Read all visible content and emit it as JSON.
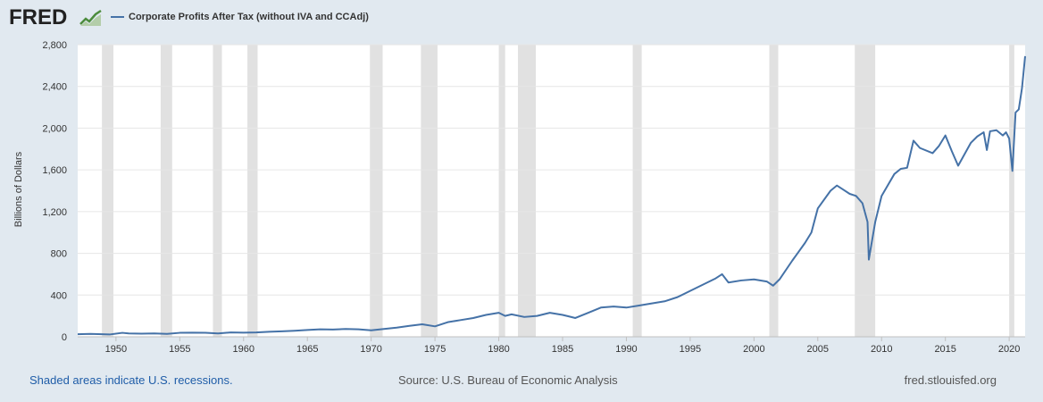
{
  "header": {
    "logo_text": "FRED",
    "logo_icon": "line-chart-icon"
  },
  "legend": {
    "series_name": "Corporate Profits After Tax (without IVA and CCAdj)",
    "color": "#4572a7"
  },
  "footer": {
    "recession_note": "Shaded areas indicate U.S. recessions.",
    "source": "Source: U.S. Bureau of Economic Analysis",
    "site": "fred.stlouisfed.org"
  },
  "chart_data": {
    "type": "line",
    "ylabel": "Billions of Dollars",
    "xlabel": "",
    "ylim": [
      0,
      2800
    ],
    "yticks": [
      0,
      400,
      800,
      1200,
      1600,
      2000,
      2400,
      2800
    ],
    "ytick_labels": [
      "0",
      "400",
      "800",
      "1,200",
      "1,600",
      "2,000",
      "2,400",
      "2,800"
    ],
    "xlim": [
      1947.0,
      2021.25
    ],
    "xticks": [
      1950,
      1955,
      1960,
      1965,
      1970,
      1975,
      1980,
      1985,
      1990,
      1995,
      2000,
      2005,
      2010,
      2015,
      2020
    ],
    "xtick_labels": [
      "1950",
      "1955",
      "1960",
      "1965",
      "1970",
      "1975",
      "1980",
      "1985",
      "1990",
      "1995",
      "2000",
      "2005",
      "2010",
      "2015",
      "2020"
    ],
    "grid": "horizontal",
    "recessions": [
      [
        1948.9,
        1949.8
      ],
      [
        1953.5,
        1954.4
      ],
      [
        1957.6,
        1958.3
      ],
      [
        1960.3,
        1961.1
      ],
      [
        1969.9,
        1970.9
      ],
      [
        1973.9,
        1975.2
      ],
      [
        1980.0,
        1980.5
      ],
      [
        1981.5,
        1982.9
      ],
      [
        1990.5,
        1991.2
      ],
      [
        2001.2,
        2001.9
      ],
      [
        2007.9,
        2009.5
      ],
      [
        2020.0,
        2020.4
      ]
    ],
    "recession_color": "#e1e1e1",
    "series": [
      {
        "color": "#4572a7",
        "x": [
          1947.0,
          1948.0,
          1949.5,
          1950.5,
          1951.0,
          1952.0,
          1953.0,
          1954.0,
          1955.0,
          1956.0,
          1957.0,
          1958.0,
          1959.0,
          1960.0,
          1961.0,
          1962.0,
          1963.0,
          1964.0,
          1965.0,
          1966.0,
          1967.0,
          1968.0,
          1969.0,
          1970.0,
          1971.0,
          1972.0,
          1973.0,
          1974.0,
          1975.0,
          1976.0,
          1977.0,
          1978.0,
          1979.0,
          1980.0,
          1980.5,
          1981.0,
          1982.0,
          1983.0,
          1984.0,
          1985.0,
          1986.0,
          1987.0,
          1988.0,
          1989.0,
          1990.0,
          1991.0,
          1992.0,
          1993.0,
          1994.0,
          1995.0,
          1996.0,
          1997.0,
          1997.5,
          1998.0,
          1999.0,
          2000.0,
          2001.0,
          2001.5,
          2002.0,
          2003.0,
          2004.0,
          2004.5,
          2005.0,
          2006.0,
          2006.5,
          2007.0,
          2007.5,
          2008.0,
          2008.5,
          2008.9,
          2009.0,
          2009.5,
          2010.0,
          2011.0,
          2011.5,
          2012.0,
          2012.5,
          2013.0,
          2014.0,
          2014.5,
          2015.0,
          2015.5,
          2016.0,
          2017.0,
          2017.5,
          2018.0,
          2018.25,
          2018.5,
          2019.0,
          2019.5,
          2019.75,
          2020.0,
          2020.25,
          2020.5,
          2020.75,
          2021.0,
          2021.25
        ],
        "values": [
          25,
          28,
          22,
          38,
          32,
          30,
          32,
          28,
          38,
          40,
          38,
          32,
          42,
          40,
          42,
          48,
          52,
          58,
          65,
          72,
          70,
          75,
          72,
          62,
          75,
          88,
          105,
          120,
          100,
          140,
          160,
          180,
          210,
          230,
          200,
          215,
          190,
          200,
          230,
          210,
          180,
          230,
          280,
          290,
          280,
          300,
          320,
          340,
          380,
          440,
          500,
          560,
          600,
          520,
          540,
          550,
          530,
          490,
          550,
          730,
          900,
          1000,
          1230,
          1400,
          1450,
          1410,
          1370,
          1350,
          1280,
          1100,
          740,
          1100,
          1350,
          1560,
          1610,
          1620,
          1880,
          1810,
          1760,
          1830,
          1930,
          1780,
          1640,
          1860,
          1920,
          1960,
          1790,
          1970,
          1980,
          1930,
          1960,
          1900,
          1590,
          2150,
          2180,
          2380,
          2690
        ]
      }
    ]
  }
}
